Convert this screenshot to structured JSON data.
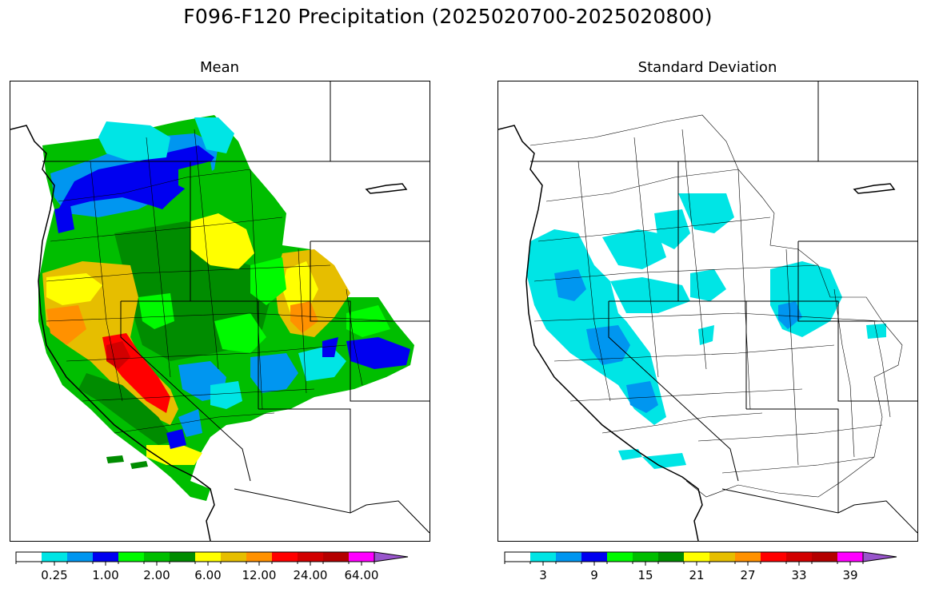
{
  "figure": {
    "title": "F096-F120 Precipitation (2025020700-2025020800)"
  },
  "panels": [
    {
      "title": "Mean",
      "colorbar": {
        "colors": [
          "#ffffff",
          "#00e5e5",
          "#0096f0",
          "#0000f0",
          "#00fa00",
          "#00be00",
          "#008c00",
          "#ffff00",
          "#e6be00",
          "#ff9100",
          "#ff0000",
          "#d20000",
          "#b40000",
          "#ff00ff",
          "#9955cc"
        ],
        "extend": "max",
        "tick_labels": [
          "0.25",
          "1.00",
          "2.00",
          "6.00",
          "12.00",
          "24.00",
          "64.00"
        ]
      }
    },
    {
      "title": "Standard Deviation",
      "colorbar": {
        "colors": [
          "#ffffff",
          "#00e5e5",
          "#0096f0",
          "#0000f0",
          "#00fa00",
          "#00be00",
          "#008c00",
          "#ffff00",
          "#e6be00",
          "#ff9100",
          "#ff0000",
          "#d20000",
          "#b40000",
          "#ff00ff",
          "#9955cc"
        ],
        "extend": "max",
        "tick_labels": [
          "3",
          "9",
          "15",
          "21",
          "27",
          "33",
          "39"
        ]
      }
    }
  ]
}
